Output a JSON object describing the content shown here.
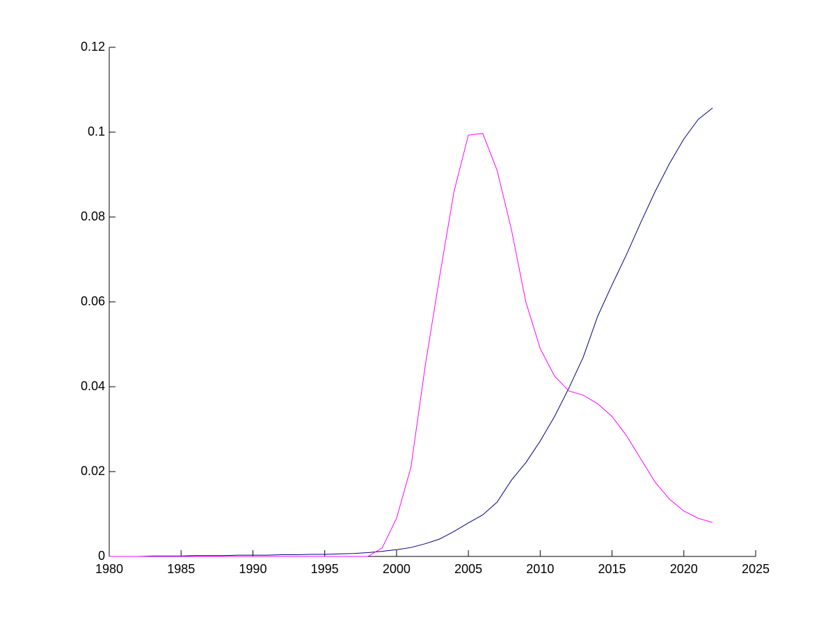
{
  "chart_data": {
    "type": "line",
    "x": [
      1980,
      1981,
      1982,
      1983,
      1984,
      1985,
      1986,
      1987,
      1988,
      1989,
      1990,
      1991,
      1992,
      1993,
      1994,
      1995,
      1996,
      1997,
      1998,
      1999,
      2000,
      2001,
      2002,
      2003,
      2004,
      2005,
      2006,
      2007,
      2008,
      2009,
      2010,
      2011,
      2012,
      2013,
      2014,
      2015,
      2016,
      2017,
      2018,
      2019,
      2020,
      2021,
      2022
    ],
    "series": [
      {
        "color": "#00007f",
        "values": [
          0,
          0,
          0,
          0.0001,
          0.0001,
          0.0001,
          0.0002,
          0.0002,
          0.0002,
          0.0003,
          0.0003,
          0.0003,
          0.0004,
          0.0004,
          0.0005,
          0.0005,
          0.0006,
          0.0007,
          0.0009,
          0.0012,
          0.0016,
          0.0021,
          0.003,
          0.0041,
          0.0059,
          0.0079,
          0.0098,
          0.0128,
          0.018,
          0.0221,
          0.0272,
          0.033,
          0.0397,
          0.047,
          0.0566,
          0.064,
          0.0711,
          0.0787,
          0.086,
          0.0926,
          0.0984,
          0.103,
          0.1057
        ]
      },
      {
        "color": "#ff00ff",
        "values": [
          0,
          0,
          0,
          0,
          0,
          0,
          0,
          0,
          0,
          0,
          0,
          0,
          0,
          0,
          0,
          0,
          0,
          0,
          0,
          0.002,
          0.009,
          0.021,
          0.045,
          0.066,
          0.086,
          0.0993,
          0.0997,
          0.091,
          0.077,
          0.06,
          0.049,
          0.0425,
          0.039,
          0.038,
          0.036,
          0.033,
          0.0285,
          0.023,
          0.0175,
          0.0135,
          0.0107,
          0.009,
          0.008
        ]
      }
    ],
    "xlim": [
      1980,
      2025
    ],
    "xticks": [
      1980,
      1985,
      1990,
      1995,
      2000,
      2005,
      2010,
      2015,
      2020,
      2025
    ],
    "ylim": [
      0,
      0.12
    ],
    "yticks": [
      0,
      0.02,
      0.04,
      0.06,
      0.08,
      0.1,
      0.12
    ]
  }
}
